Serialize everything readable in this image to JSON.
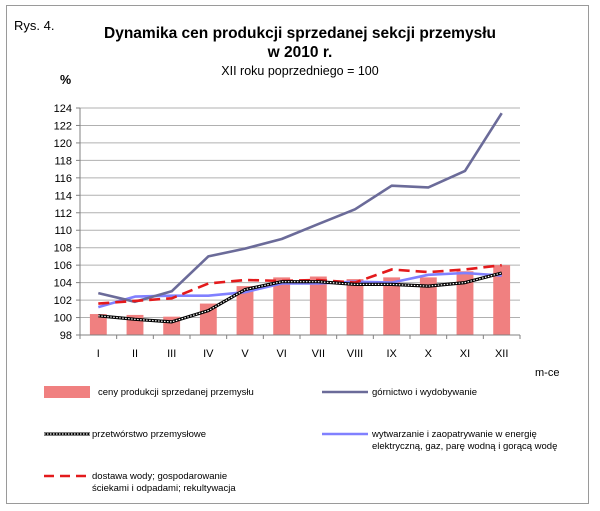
{
  "figure_label": "Rys. 4.",
  "chart_data": {
    "type": "bar",
    "title_line1": "Dynamika cen produkcji sprzedanej sekcji przemysłu",
    "title_line2": "w 2010 r.",
    "subtitle": "XII roku poprzedniego = 100",
    "ylabel": "%",
    "xlabel": "m-ce",
    "ylim": [
      98,
      124
    ],
    "ytick_step": 2,
    "grid": true,
    "categories": [
      "I",
      "II",
      "III",
      "IV",
      "V",
      "VI",
      "VII",
      "VIII",
      "IX",
      "X",
      "XI",
      "XII"
    ],
    "series": [
      {
        "name": "ceny produkcji sprzedanej przemysłu",
        "type": "bar",
        "color": "#f08080",
        "values": [
          100.4,
          100.3,
          100.1,
          101.6,
          103.6,
          104.6,
          104.7,
          104.4,
          104.6,
          104.6,
          105.3,
          106.0
        ]
      },
      {
        "name": "górnictwo i wydobywanie",
        "type": "line",
        "style": "solid",
        "color": "#6b6b99",
        "values": [
          102.8,
          101.8,
          103.0,
          107.0,
          107.9,
          109.0,
          110.7,
          112.4,
          115.1,
          114.9,
          116.8,
          123.4
        ]
      },
      {
        "name": "przetwórstwo przemysłowe",
        "type": "line",
        "style": "dotted-black",
        "color": "#000000",
        "values": [
          100.2,
          99.8,
          99.5,
          100.8,
          103.2,
          104.1,
          104.1,
          103.8,
          103.8,
          103.6,
          104.0,
          105.1
        ]
      },
      {
        "name_line1": "wytwarzanie  i zaopatrywanie  w energię",
        "name_line2": "elektryczną, gaz, parę wodną i gorącą wodę",
        "type": "line",
        "style": "solid",
        "color": "#8080ff",
        "values": [
          101.2,
          102.4,
          102.5,
          102.5,
          102.9,
          103.9,
          103.9,
          104.1,
          104.0,
          104.9,
          105.1,
          104.8
        ]
      },
      {
        "name_line1": "dostawa wody; gospodarowanie",
        "name_line2": "ściekami i odpadami; rekultywacja",
        "type": "line",
        "style": "dashed",
        "color": "#e31a1c",
        "values": [
          101.6,
          101.9,
          102.2,
          103.9,
          104.3,
          104.2,
          104.3,
          104.0,
          105.5,
          105.2,
          105.5,
          106.0
        ]
      }
    ]
  }
}
